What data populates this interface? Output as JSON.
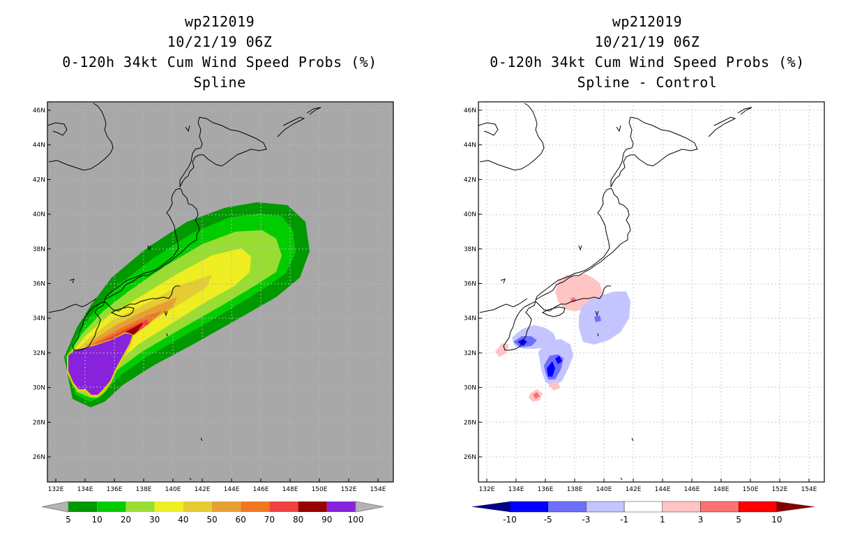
{
  "left": {
    "title_lines": [
      "wp212019",
      "10/21/19 06Z",
      "0-120h 34kt Cum Wind Speed Probs (%)",
      "Spline"
    ],
    "colorbar": {
      "labels": [
        "5",
        "10",
        "20",
        "30",
        "40",
        "50",
        "60",
        "70",
        "80",
        "90",
        "100"
      ],
      "colors": [
        "#b4b4b4",
        "#009900",
        "#00cc00",
        "#99dd33",
        "#eeee22",
        "#e5cc33",
        "#e5a033",
        "#f07722",
        "#f04040",
        "#990000",
        "#8822dd",
        "#b4b4b4"
      ]
    },
    "background_color": "#a8a8a8"
  },
  "right": {
    "title_lines": [
      "wp212019",
      "10/21/19 06Z",
      "0-120h 34kt Cum Wind Speed Probs (%)",
      "Spline - Control"
    ],
    "colorbar": {
      "labels": [
        "-10",
        "-5",
        "-3",
        "-1",
        "1",
        "3",
        "5",
        "10"
      ],
      "colors": [
        "#000080",
        "#0000ff",
        "#6e6eff",
        "#c4c4ff",
        "#ffffff",
        "#ffc4c4",
        "#ff7070",
        "#ff0000",
        "#800000"
      ]
    }
  },
  "axes": {
    "lat_labels": [
      "46N",
      "44N",
      "42N",
      "40N",
      "38N",
      "36N",
      "34N",
      "32N",
      "30N",
      "28N",
      "26N"
    ],
    "lon_labels": [
      "132E",
      "134E",
      "136E",
      "138E",
      "140E",
      "142E",
      "144E",
      "146E",
      "148E",
      "150E",
      "152E",
      "154E"
    ]
  },
  "chart_data": [
    {
      "type": "heatmap",
      "title": "0-120h 34kt Cum Wind Speed Probs (%) - Spline",
      "storm": "wp212019",
      "time": "10/21/19 06Z",
      "units": "%",
      "xlim_deg_e": [
        131.5,
        155.5
      ],
      "ylim_deg_n": [
        24.7,
        46.5
      ],
      "levels": [
        5,
        10,
        20,
        30,
        40,
        50,
        60,
        70,
        80,
        90,
        100
      ],
      "max_probability_region": "south of Shikoku/Kyushu near 30-33N 133-136E (90-100%)"
    },
    {
      "type": "heatmap",
      "title": "0-120h 34kt Cum Wind Speed Probs (%) - Spline - Control",
      "storm": "wp212019",
      "time": "10/21/19 06Z",
      "units": "%",
      "xlim_deg_e": [
        131.5,
        155.5
      ],
      "ylim_deg_n": [
        24.7,
        46.5
      ],
      "levels": [
        -10,
        -5,
        -3,
        -1,
        1,
        3,
        5,
        10
      ]
    }
  ]
}
